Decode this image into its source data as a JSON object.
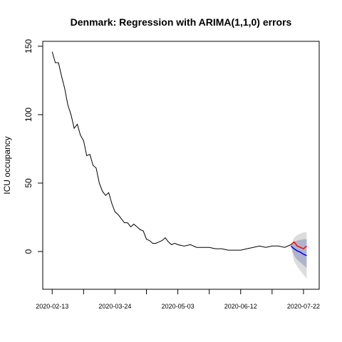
{
  "chart_data": {
    "type": "line",
    "title": "Denmark: Regression with ARIMA(1,1,0) errors",
    "ylabel": "ICU occupancy",
    "xlim": [
      "2020-02-07",
      "2020-08-01"
    ],
    "ylim": [
      -27.6,
      153.6
    ],
    "yticks": [
      0,
      50,
      100,
      150
    ],
    "xticks": [
      "2020-02-13",
      {
        "value": "2020-03-04",
        "label": null
      },
      "2020-03-24",
      {
        "value": "2020-04-13",
        "label": null
      },
      "2020-05-03",
      {
        "value": "2020-05-23",
        "label": null
      },
      "2020-06-12",
      {
        "value": "2020-07-02",
        "label": null
      },
      "2020-07-22"
    ],
    "intervals": [
      {
        "color": "#dcdcdc",
        "x": [
          "2020-07-14",
          "2020-07-16",
          "2020-07-18",
          "2020-07-20",
          "2020-07-22",
          "2020-07-24"
        ],
        "lower": [
          4,
          -7,
          -11,
          -14,
          -17,
          -20
        ],
        "upper": [
          4,
          10,
          12,
          13,
          14,
          14
        ]
      },
      {
        "color": "#aeb4cc",
        "x": [
          "2020-07-14",
          "2020-07-16",
          "2020-07-18",
          "2020-07-20",
          "2020-07-22",
          "2020-07-24"
        ],
        "lower": [
          4,
          -3,
          -6,
          -8,
          -10,
          -12
        ],
        "upper": [
          4,
          7,
          8,
          8.5,
          9,
          9
        ]
      }
    ],
    "series": [
      {
        "color": "#000000",
        "x": [
          "2020-02-13",
          "2020-02-15",
          "2020-02-17",
          "2020-02-19",
          "2020-02-21",
          "2020-02-23",
          "2020-02-25",
          "2020-02-27",
          "2020-02-29",
          "2020-03-02",
          "2020-03-04",
          "2020-03-06",
          "2020-03-08",
          "2020-03-10",
          "2020-03-12",
          "2020-03-14",
          "2020-03-16",
          "2020-03-18",
          "2020-03-20",
          "2020-03-22",
          "2020-03-24",
          "2020-03-26",
          "2020-03-28",
          "2020-03-30",
          "2020-04-01",
          "2020-04-03",
          "2020-04-05",
          "2020-04-07",
          "2020-04-09",
          "2020-04-11",
          "2020-04-13",
          "2020-04-15",
          "2020-04-17",
          "2020-04-19",
          "2020-04-21",
          "2020-04-23",
          "2020-04-25",
          "2020-04-27",
          "2020-04-29",
          "2020-05-01",
          "2020-05-03",
          "2020-05-07",
          "2020-05-11",
          "2020-05-15",
          "2020-05-19",
          "2020-05-23",
          "2020-05-27",
          "2020-05-31",
          "2020-06-04",
          "2020-06-08",
          "2020-06-12",
          "2020-06-16",
          "2020-06-20",
          "2020-06-24",
          "2020-06-28",
          "2020-07-02",
          "2020-07-06",
          "2020-07-10",
          "2020-07-14"
        ],
        "values": [
          146,
          138,
          138,
          128,
          119,
          107,
          100,
          90,
          93,
          85,
          81,
          70,
          71,
          63,
          61,
          50,
          44,
          41,
          43,
          35,
          29,
          27,
          24,
          21,
          21,
          18,
          20,
          18,
          16,
          15,
          9,
          8,
          6,
          6,
          7,
          8,
          10,
          7,
          5,
          6,
          5,
          4,
          5,
          3,
          3,
          3,
          2,
          2,
          1,
          1,
          1,
          2,
          3,
          4,
          3,
          4,
          4,
          3,
          5
        ]
      },
      {
        "color": "#ff0000",
        "x": [
          "2020-07-14",
          "2020-07-16",
          "2020-07-18",
          "2020-07-20",
          "2020-07-22",
          "2020-07-24"
        ],
        "values": [
          5,
          7,
          4,
          3,
          2,
          4
        ]
      },
      {
        "color": "#0000ff",
        "x": [
          "2020-07-14",
          "2020-07-16",
          "2020-07-18",
          "2020-07-20",
          "2020-07-22",
          "2020-07-24"
        ],
        "values": [
          4,
          2,
          0.5,
          -0.5,
          -2,
          -3
        ]
      }
    ]
  }
}
